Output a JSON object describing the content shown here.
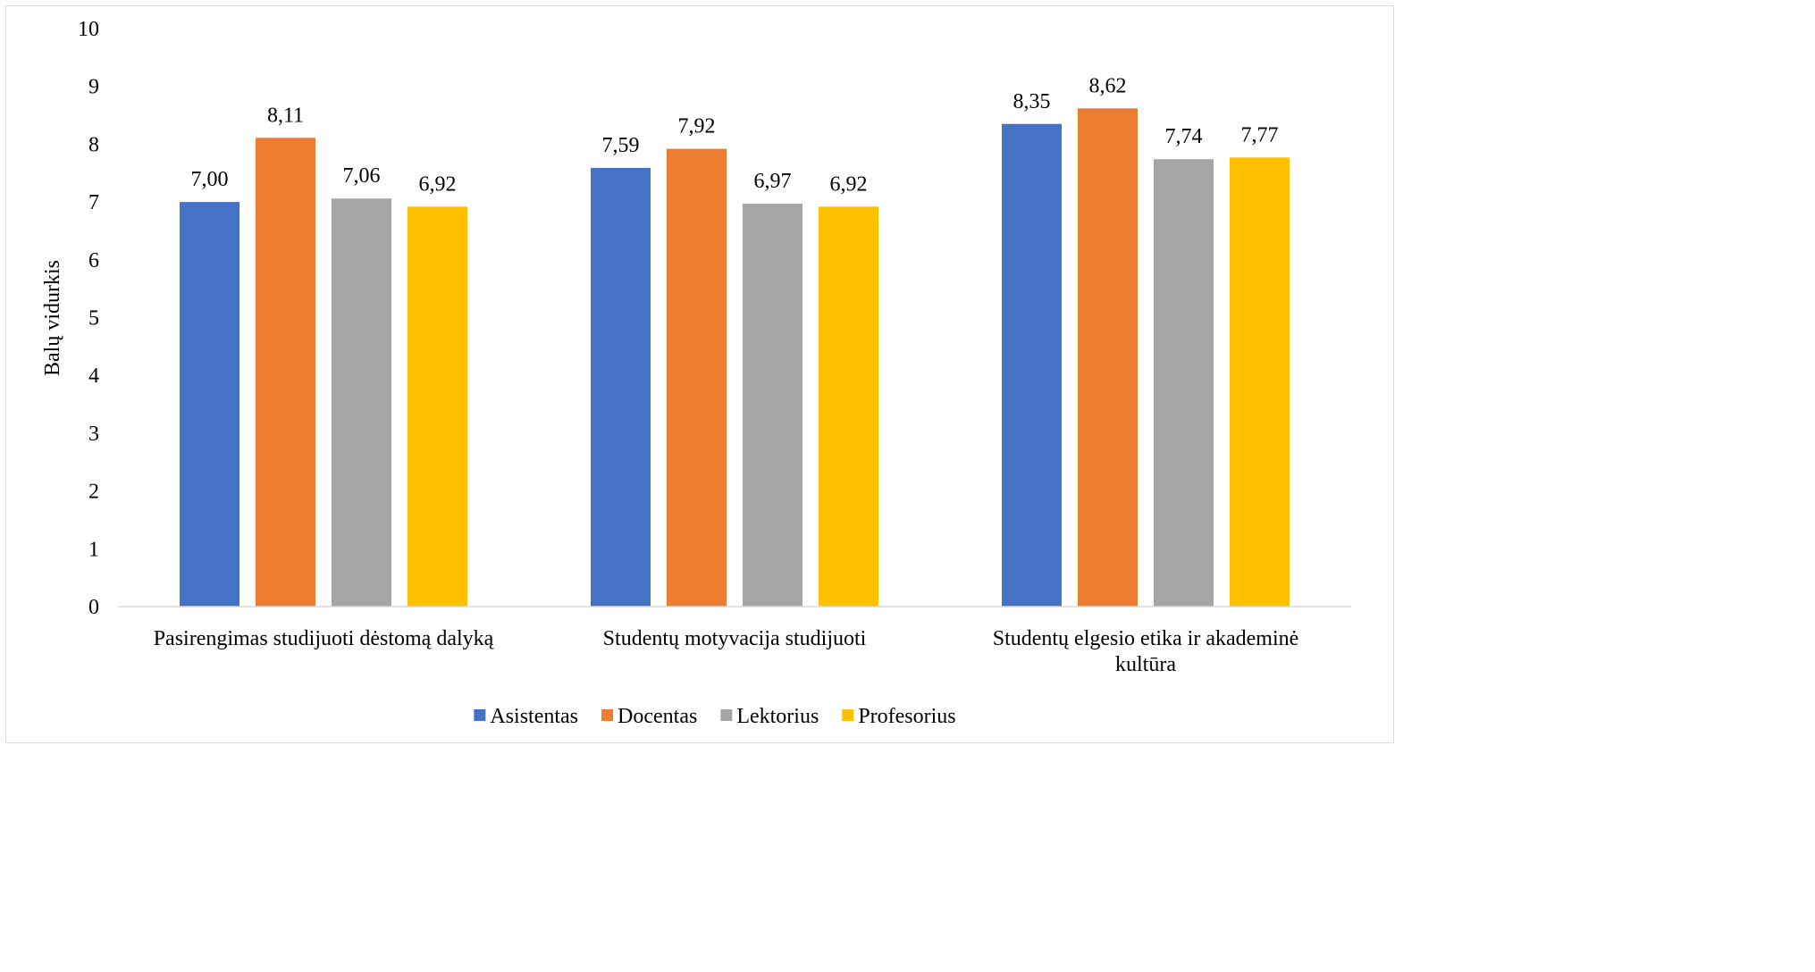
{
  "chart_data": {
    "type": "bar",
    "ylabel": "Balų vidurkis",
    "ylim": [
      0,
      10
    ],
    "yticks": [
      "0",
      "1",
      "2",
      "3",
      "4",
      "5",
      "6",
      "7",
      "8",
      "9",
      "10"
    ],
    "categories": [
      [
        "Pasirengimas studijuoti dėstomą dalyką"
      ],
      [
        "Studentų motyvacija studijuoti"
      ],
      [
        "Studentų elgesio etika ir akademinė",
        "kultūra"
      ]
    ],
    "series": [
      {
        "name": "Asistentas",
        "color": "#4472c4",
        "values": [
          7.0,
          7.59,
          8.35
        ],
        "labels": [
          "7,00",
          "7,59",
          "8,35"
        ]
      },
      {
        "name": "Docentas",
        "color": "#ed7d31",
        "values": [
          8.11,
          7.92,
          8.62
        ],
        "labels": [
          "8,11",
          "7,92",
          "8,62"
        ]
      },
      {
        "name": "Lektorius",
        "color": "#a5a5a5",
        "values": [
          7.06,
          6.97,
          7.74
        ],
        "labels": [
          "7,06",
          "6,97",
          "7,74"
        ]
      },
      {
        "name": "Profesorius",
        "color": "#ffc000",
        "values": [
          6.92,
          6.92,
          7.77
        ],
        "labels": [
          "6,92",
          "6,92",
          "7,77"
        ]
      }
    ],
    "legend": "bottom",
    "grid": false
  }
}
